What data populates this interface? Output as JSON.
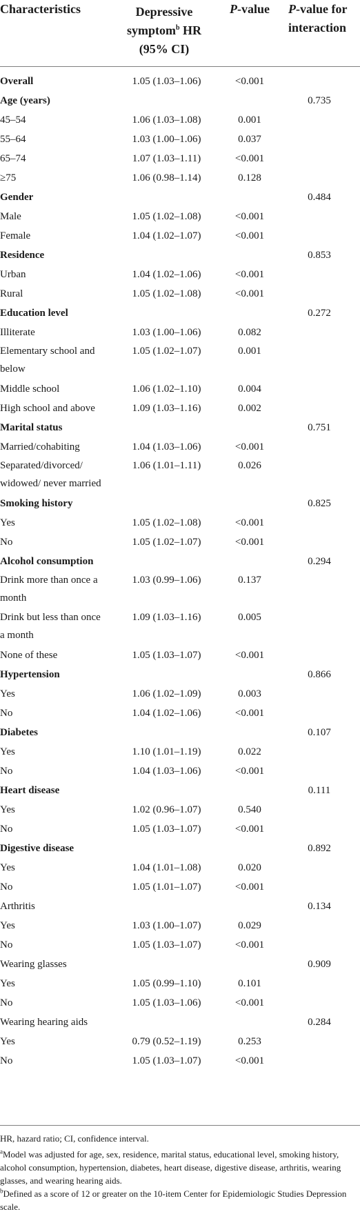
{
  "header": {
    "characteristics": "Characteristics",
    "hr_line1": "Depressive",
    "hr_line2a": "symptom",
    "hr_sup": "b",
    "hr_line2b": " HR",
    "hr_line3": "(95% CI)",
    "p_italic": "P",
    "p_rest": "-value",
    "pint_italic": "P",
    "pint_rest": "-value for",
    "pint_line2": "interaction"
  },
  "rows": [
    {
      "label": "Overall",
      "bold": true,
      "hr": "1.05 (1.03–1.06)",
      "p": "<0.001",
      "pint": ""
    },
    {
      "label": "Age (years)",
      "bold": true,
      "hr": "",
      "p": "",
      "pint": "0.735"
    },
    {
      "label": "45–54",
      "bold": false,
      "hr": "1.06 (1.03–1.08)",
      "p": "0.001",
      "pint": ""
    },
    {
      "label": "55–64",
      "bold": false,
      "hr": "1.03 (1.00–1.06)",
      "p": "0.037",
      "pint": ""
    },
    {
      "label": "65–74",
      "bold": false,
      "hr": "1.07 (1.03–1.11)",
      "p": "<0.001",
      "pint": ""
    },
    {
      "label": "≥75",
      "bold": false,
      "hr": "1.06 (0.98–1.14)",
      "p": "0.128",
      "pint": ""
    },
    {
      "label": "Gender",
      "bold": true,
      "hr": "",
      "p": "",
      "pint": "0.484"
    },
    {
      "label": "Male",
      "bold": false,
      "hr": "1.05 (1.02–1.08)",
      "p": "<0.001",
      "pint": ""
    },
    {
      "label": "Female",
      "bold": false,
      "hr": "1.04 (1.02–1.07)",
      "p": "<0.001",
      "pint": ""
    },
    {
      "label": "Residence",
      "bold": true,
      "hr": "",
      "p": "",
      "pint": "0.853"
    },
    {
      "label": "Urban",
      "bold": false,
      "hr": "1.04 (1.02–1.06)",
      "p": "<0.001",
      "pint": ""
    },
    {
      "label": "Rural",
      "bold": false,
      "hr": "1.05 (1.02–1.08)",
      "p": "<0.001",
      "pint": ""
    },
    {
      "label": "Education level",
      "bold": true,
      "hr": "",
      "p": "",
      "pint": "0.272"
    },
    {
      "label": "Illiterate",
      "bold": false,
      "hr": "1.03 (1.00–1.06)",
      "p": "0.082",
      "pint": ""
    },
    {
      "label": "Elementary school and",
      "label2": "below",
      "bold": false,
      "hr": "1.05 (1.02–1.07)",
      "p": "0.001",
      "pint": ""
    },
    {
      "label": "Middle school",
      "bold": false,
      "hr": "1.06 (1.02–1.10)",
      "p": "0.004",
      "pint": ""
    },
    {
      "label": "High school and above",
      "bold": false,
      "hr": "1.09 (1.03–1.16)",
      "p": "0.002",
      "pint": ""
    },
    {
      "label": "Marital status",
      "bold": true,
      "hr": "",
      "p": "",
      "pint": "0.751"
    },
    {
      "label": "Married/cohabiting",
      "bold": false,
      "hr": "1.04 (1.03–1.06)",
      "p": "<0.001",
      "pint": ""
    },
    {
      "label": "Separated/divorced/",
      "label2": "widowed/ never married",
      "bold": false,
      "hr": "1.06 (1.01–1.11)",
      "p": "0.026",
      "pint": ""
    },
    {
      "label": "Smoking history",
      "bold": true,
      "hr": "",
      "p": "",
      "pint": "0.825"
    },
    {
      "label": "Yes",
      "bold": false,
      "hr": "1.05 (1.02–1.08)",
      "p": "<0.001",
      "pint": ""
    },
    {
      "label": "No",
      "bold": false,
      "hr": "1.05 (1.02–1.07)",
      "p": "<0.001",
      "pint": ""
    },
    {
      "label": "Alcohol consumption",
      "bold": true,
      "hr": "",
      "p": "",
      "pint": "0.294"
    },
    {
      "label": "Drink more than once a",
      "label2": "month",
      "bold": false,
      "hr": "1.03 (0.99–1.06)",
      "p": "0.137",
      "pint": ""
    },
    {
      "label": "Drink but less than once",
      "label2": "a month",
      "bold": false,
      "hr": "1.09 (1.03–1.16)",
      "p": "0.005",
      "pint": ""
    },
    {
      "label": "None of these",
      "bold": false,
      "hr": "1.05 (1.03–1.07)",
      "p": "<0.001",
      "pint": ""
    },
    {
      "label": "Hypertension",
      "bold": true,
      "hr": "",
      "p": "",
      "pint": "0.866"
    },
    {
      "label": "Yes",
      "bold": false,
      "hr": "1.06 (1.02–1.09)",
      "p": "0.003",
      "pint": ""
    },
    {
      "label": "No",
      "bold": false,
      "hr": "1.04 (1.02–1.06)",
      "p": "<0.001",
      "pint": ""
    },
    {
      "label": "Diabetes",
      "bold": true,
      "hr": "",
      "p": "",
      "pint": "0.107"
    },
    {
      "label": "Yes",
      "bold": false,
      "hr": "1.10 (1.01–1.19)",
      "p": "0.022",
      "pint": ""
    },
    {
      "label": "No",
      "bold": false,
      "hr": "1.04 (1.03–1.06)",
      "p": "<0.001",
      "pint": ""
    },
    {
      "label": "Heart disease",
      "bold": true,
      "hr": "",
      "p": "",
      "pint": "0.111"
    },
    {
      "label": "Yes",
      "bold": false,
      "hr": "1.02 (0.96–1.07)",
      "p": "0.540",
      "pint": ""
    },
    {
      "label": "No",
      "bold": false,
      "hr": "1.05 (1.03–1.07)",
      "p": "<0.001",
      "pint": ""
    },
    {
      "label": "Digestive disease",
      "bold": true,
      "hr": "",
      "p": "",
      "pint": "0.892"
    },
    {
      "label": "Yes",
      "bold": false,
      "hr": "1.04 (1.01–1.08)",
      "p": "0.020",
      "pint": ""
    },
    {
      "label": "No",
      "bold": false,
      "hr": "1.05 (1.01–1.07)",
      "p": "<0.001",
      "pint": ""
    },
    {
      "label": "Arthritis",
      "bold": false,
      "hr": "",
      "p": "",
      "pint": "0.134"
    },
    {
      "label": "Yes",
      "bold": false,
      "hr": "1.03 (1.00–1.07)",
      "p": "0.029",
      "pint": ""
    },
    {
      "label": "No",
      "bold": false,
      "hr": "1.05 (1.03–1.07)",
      "p": "<0.001",
      "pint": ""
    },
    {
      "label": "Wearing glasses",
      "bold": false,
      "hr": "",
      "p": "",
      "pint": "0.909"
    },
    {
      "label": "Yes",
      "bold": false,
      "hr": "1.05 (0.99–1.10)",
      "p": "0.101",
      "pint": ""
    },
    {
      "label": "No",
      "bold": false,
      "hr": "1.05 (1.03–1.06)",
      "p": "<0.001",
      "pint": ""
    },
    {
      "label": "Wearing hearing aids",
      "bold": false,
      "hr": "",
      "p": "",
      "pint": "0.284"
    },
    {
      "label": "Yes",
      "bold": false,
      "hr": "0.79 (0.52–1.19)",
      "p": "0.253",
      "pint": ""
    },
    {
      "label": "No",
      "bold": false,
      "hr": "1.05 (1.03–1.07)",
      "p": "<0.001",
      "pint": ""
    }
  ],
  "footnotes": {
    "abbrev": "HR, hazard ratio; CI, confidence interval.",
    "a_mark": "a",
    "a_text": "Model was adjusted for age, sex, residence, marital status, educational level, smoking history, alcohol consumption, hypertension, diabetes, heart disease, digestive disease, arthritis, wearing glasses, and wearing hearing aids.",
    "b_mark": "b",
    "b_text": "Defined as a score of 12 or greater on the 10-item Center for Epidemiologic Studies Depression scale."
  }
}
